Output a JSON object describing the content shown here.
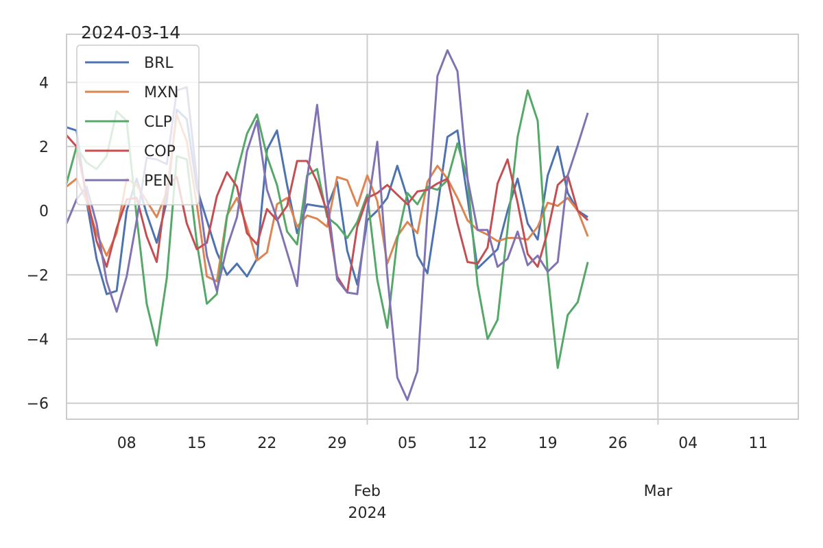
{
  "chart_data": {
    "type": "line",
    "title": "2024-03-14",
    "xlabel": "",
    "ylabel": "",
    "ylim": [
      -6.5,
      5.5
    ],
    "xlim": [
      "2024-01-02",
      "2024-03-15"
    ],
    "x_start": "2024-01-02",
    "x_step_days": 1,
    "x_ticks": [
      {
        "date": "2024-01-08",
        "label": "08"
      },
      {
        "date": "2024-01-15",
        "label": "15"
      },
      {
        "date": "2024-01-22",
        "label": "22"
      },
      {
        "date": "2024-01-29",
        "label": "29"
      },
      {
        "date": "2024-02-05",
        "label": "05"
      },
      {
        "date": "2024-02-12",
        "label": "12"
      },
      {
        "date": "2024-02-19",
        "label": "19"
      },
      {
        "date": "2024-02-26",
        "label": "26"
      },
      {
        "date": "2024-03-04",
        "label": "04"
      },
      {
        "date": "2024-03-11",
        "label": "11"
      }
    ],
    "x_major_ticks": [
      {
        "date": "2024-02-01",
        "label": "Feb",
        "sublabel": "2024"
      },
      {
        "date": "2024-03-01",
        "label": "Mar",
        "sublabel": ""
      }
    ],
    "y_ticks": [
      4,
      2,
      0,
      -2,
      -4,
      -6
    ],
    "y_tick_labels": [
      "4",
      "2",
      "0",
      "−2",
      "−4",
      "−6"
    ],
    "grid": true,
    "legend_position": "top-left",
    "series": [
      {
        "name": "BRL",
        "color": "#4c72b0",
        "values": [
          2.6,
          2.5,
          0.3,
          -1.5,
          -2.6,
          -2.5,
          0.0,
          1.0,
          -0.1,
          -1.0,
          0.3,
          3.15,
          2.85,
          0.7,
          -0.3,
          -1.3,
          -2.0,
          -1.65,
          -2.05,
          -1.5,
          1.9,
          2.5,
          0.8,
          -0.7,
          0.2,
          0.15,
          0.1,
          0.9,
          -1.25,
          -2.3,
          -0.3,
          0.0,
          0.4,
          1.4,
          0.4,
          -1.4,
          -1.95,
          0.1,
          2.3,
          2.5,
          0.4,
          -1.8,
          -1.5,
          -1.2,
          0.0,
          1.0,
          -0.4,
          -0.9,
          1.1,
          2.0,
          0.55,
          0.0,
          -0.2
        ]
      },
      {
        "name": "MXN",
        "color": "#dd8452",
        "values": [
          0.75,
          1.0,
          0.3,
          -0.7,
          -1.4,
          -0.7,
          1.0,
          0.8,
          0.3,
          -0.2,
          0.6,
          3.0,
          2.15,
          0.2,
          -2.05,
          -2.2,
          -0.15,
          0.4,
          -0.5,
          -1.55,
          -1.3,
          0.2,
          0.4,
          -0.5,
          -0.15,
          -0.25,
          -0.5,
          1.05,
          0.95,
          0.15,
          1.1,
          0.3,
          -1.65,
          -0.8,
          -0.35,
          -0.7,
          0.9,
          1.4,
          1.0,
          0.4,
          -0.3,
          -0.6,
          -0.75,
          -0.95,
          -0.85,
          -0.85,
          -0.9,
          -0.5,
          0.25,
          0.15,
          0.4,
          0.0,
          -0.8
        ]
      },
      {
        "name": "CLP",
        "color": "#55a868",
        "values": [
          0.85,
          2.0,
          1.5,
          1.3,
          1.7,
          3.1,
          2.8,
          -0.2,
          -2.9,
          -4.2,
          -2.1,
          1.7,
          1.6,
          -1.0,
          -2.9,
          -2.6,
          -0.2,
          1.2,
          2.4,
          3.0,
          1.7,
          0.8,
          -0.65,
          -1.05,
          1.1,
          1.3,
          -0.2,
          -0.45,
          -0.85,
          -0.35,
          0.5,
          -2.15,
          -3.65,
          -0.9,
          0.55,
          0.2,
          0.75,
          0.65,
          0.95,
          2.1,
          1.0,
          -2.3,
          -4.0,
          -3.4,
          -0.55,
          2.3,
          3.75,
          2.8,
          -1.95,
          -4.9,
          -3.25,
          -2.85,
          -1.6
        ]
      },
      {
        "name": "COP",
        "color": "#c44e52",
        "values": [
          2.35,
          2.0,
          0.5,
          -0.95,
          -1.75,
          -0.55,
          0.35,
          0.4,
          -0.8,
          -1.6,
          0.8,
          1.05,
          -0.4,
          -1.2,
          -1.0,
          0.45,
          1.2,
          0.75,
          -0.7,
          -1.05,
          0.05,
          -0.3,
          0.15,
          1.55,
          1.55,
          0.9,
          -0.05,
          -2.05,
          -2.55,
          -0.5,
          0.4,
          0.55,
          0.8,
          0.5,
          0.2,
          0.6,
          0.65,
          0.85,
          1.0,
          -0.4,
          -1.6,
          -1.65,
          -1.15,
          0.85,
          1.6,
          0.25,
          -1.35,
          -1.75,
          -0.65,
          0.8,
          1.1,
          0.0,
          -0.3
        ]
      },
      {
        "name": "PEN",
        "color": "#8172b3",
        "values": [
          -0.4,
          0.35,
          0.75,
          -0.4,
          -2.2,
          -3.15,
          -2.05,
          -0.3,
          1.65,
          1.6,
          1.45,
          3.75,
          3.85,
          1.0,
          -1.4,
          -2.5,
          -1.15,
          -0.2,
          1.85,
          2.8,
          0.65,
          -0.25,
          -1.3,
          -2.35,
          1.0,
          3.3,
          0.4,
          -2.15,
          -2.55,
          -2.6,
          0.0,
          2.15,
          -2.0,
          -5.2,
          -5.9,
          -5.0,
          -0.1,
          4.2,
          5.0,
          4.35,
          1.0,
          -0.6,
          -0.6,
          -1.75,
          -1.5,
          -0.65,
          -1.7,
          -1.4,
          -1.9,
          -1.6,
          1.1,
          2.05,
          3.05
        ]
      }
    ]
  }
}
